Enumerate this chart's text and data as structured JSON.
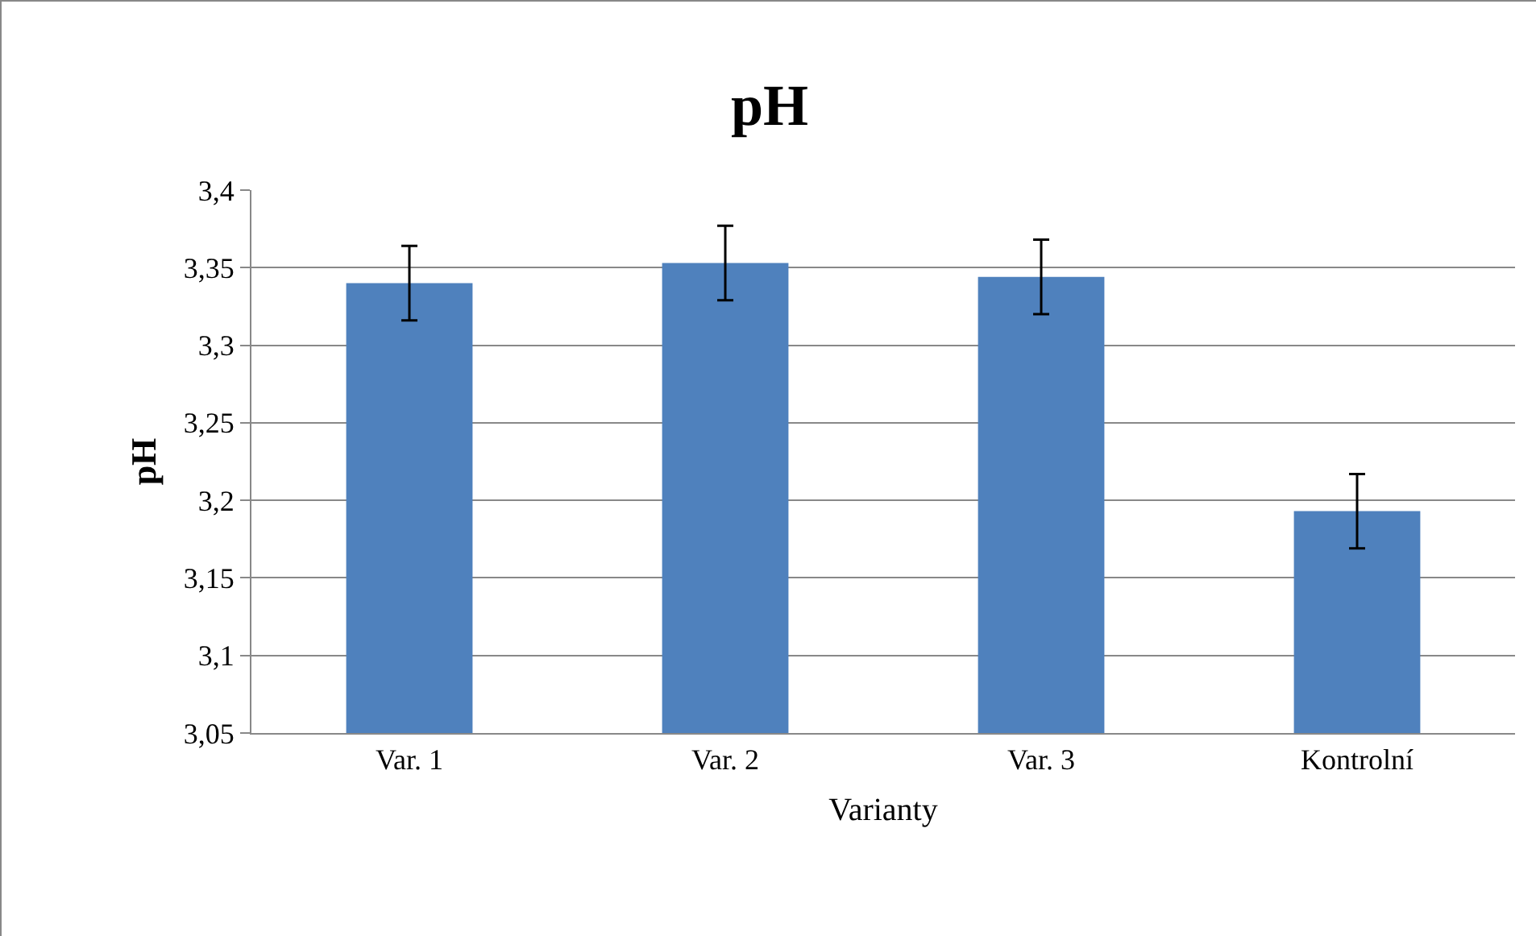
{
  "chart_data": {
    "type": "bar",
    "title": "pH",
    "xlabel": "Varianty",
    "ylabel": "pH",
    "categories": [
      "Var. 1",
      "Var. 2",
      "Var. 3",
      "Kontrolní"
    ],
    "values": [
      3.34,
      3.353,
      3.344,
      3.193
    ],
    "errors": [
      0.024,
      0.024,
      0.024,
      0.024
    ],
    "color": "#4f81bd",
    "ylim": [
      3.05,
      3.4
    ],
    "yticks": [
      {
        "value": 3.05,
        "label": "3,05"
      },
      {
        "value": 3.1,
        "label": "3,1"
      },
      {
        "value": 3.15,
        "label": "3,15"
      },
      {
        "value": 3.2,
        "label": "3,2"
      },
      {
        "value": 3.25,
        "label": "3,25"
      },
      {
        "value": 3.3,
        "label": "3,3"
      },
      {
        "value": 3.35,
        "label": "3,35"
      },
      {
        "value": 3.4,
        "label": "3,4"
      }
    ],
    "grid": "y"
  }
}
